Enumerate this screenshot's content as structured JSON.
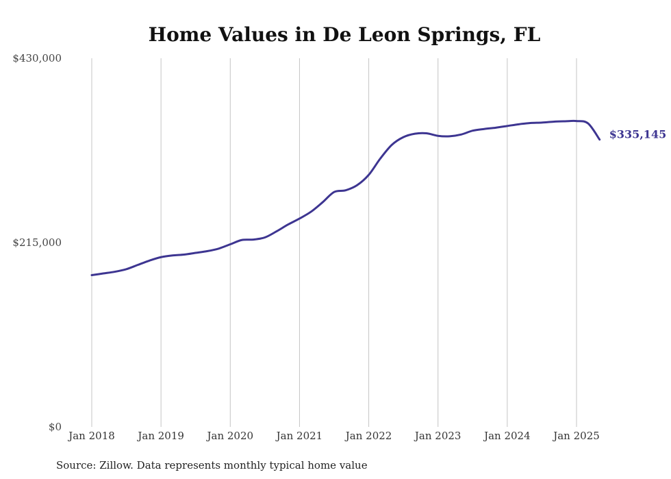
{
  "chart_data": {
    "type": "line",
    "title": "Home Values in De Leon Springs, FL",
    "xlabel": "",
    "ylabel": "",
    "ylim": [
      0,
      430000
    ],
    "y_ticks": [
      0,
      215000,
      430000
    ],
    "y_tick_labels": [
      "$0",
      "$215,000",
      "$430,000"
    ],
    "x_ticks": [
      "2018-01",
      "2019-01",
      "2020-01",
      "2021-01",
      "2022-01",
      "2023-01",
      "2024-01",
      "2025-01"
    ],
    "x_tick_labels": [
      "Jan 2018",
      "Jan 2019",
      "Jan 2020",
      "Jan 2021",
      "Jan 2022",
      "Jan 2023",
      "Jan 2024",
      "Jan 2025"
    ],
    "grid": "vertical",
    "series": [
      {
        "color": "#3d3591",
        "end_label": "$335,145",
        "x": [
          "2018-01",
          "2018-03",
          "2018-05",
          "2018-07",
          "2018-09",
          "2018-11",
          "2019-01",
          "2019-03",
          "2019-05",
          "2019-07",
          "2019-09",
          "2019-11",
          "2020-01",
          "2020-03",
          "2020-05",
          "2020-07",
          "2020-09",
          "2020-11",
          "2021-01",
          "2021-03",
          "2021-05",
          "2021-07",
          "2021-09",
          "2021-11",
          "2022-01",
          "2022-03",
          "2022-05",
          "2022-07",
          "2022-09",
          "2022-11",
          "2023-01",
          "2023-03",
          "2023-05",
          "2023-07",
          "2023-09",
          "2023-11",
          "2024-01",
          "2024-03",
          "2024-05",
          "2024-07",
          "2024-09",
          "2024-11",
          "2025-01",
          "2025-03",
          "2025-05"
        ],
        "values": [
          177000,
          179000,
          181000,
          184000,
          189000,
          194000,
          198000,
          200000,
          201000,
          203000,
          205000,
          208000,
          213000,
          218000,
          218500,
          221000,
          228000,
          236000,
          243000,
          251000,
          262000,
          274000,
          276000,
          282000,
          294000,
          313000,
          329000,
          338000,
          342000,
          342500,
          339500,
          339000,
          341000,
          345500,
          347500,
          349000,
          351000,
          353000,
          354500,
          355000,
          356000,
          356500,
          356800,
          354000,
          335145
        ]
      }
    ]
  },
  "footer": {
    "source": "Source: Zillow. Data represents monthly typical home value"
  }
}
